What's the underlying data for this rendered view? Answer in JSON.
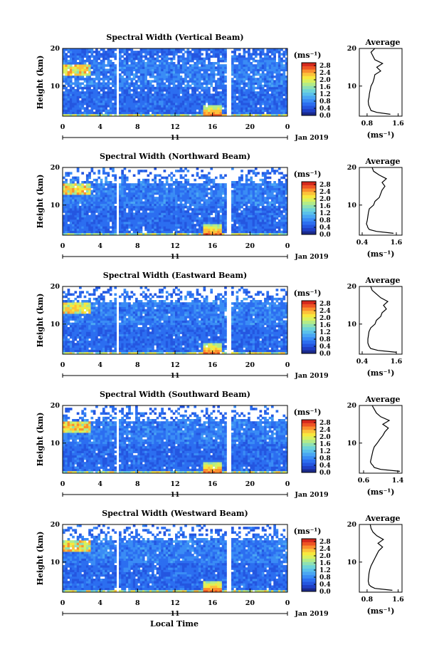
{
  "page": {
    "xlabel": "Local Time"
  },
  "colormap": [
    "#1a2a8c",
    "#1f3fc4",
    "#2456e0",
    "#2c6ef0",
    "#3a8cf5",
    "#4aa6f3",
    "#5ac0ea",
    "#6dd3d8",
    "#8ee0b4",
    "#b3eb88",
    "#d9f05e",
    "#f7e83e",
    "#fcc23a",
    "#fa8f2e",
    "#ee5424",
    "#d6281c"
  ],
  "colorbar": {
    "unit": "(ms⁻¹)",
    "ticks": [
      "2.8",
      "2.4",
      "2.0",
      "1.6",
      "1.2",
      "0.8",
      "0.4",
      "0.0"
    ]
  },
  "chart_data": [
    {
      "type": "heatmap",
      "title": "Spectral Width (Vertical Beam)",
      "ylabel": "Height (km)",
      "y_ticks": [
        "20",
        "10"
      ],
      "x_ticks": [
        "0",
        "4",
        "8",
        "12",
        "16",
        "20",
        "0"
      ],
      "date_ticks": [
        "11"
      ],
      "date_label": "Jan 2019",
      "xlim": [
        0,
        24
      ],
      "ylim": [
        2,
        20
      ],
      "zlim": [
        0.0,
        3.0
      ],
      "gaps_hours": [
        5.9,
        17.7
      ],
      "average_profile": {
        "type": "line",
        "title": "Average",
        "xlabel": "(ms⁻¹)",
        "x_ticks": [
          "0.8",
          "1.6"
        ],
        "xlim": [
          0.6,
          1.7
        ],
        "y_ticks": [
          "20",
          "10"
        ],
        "height_km": [
          2.5,
          3,
          3.5,
          4,
          4.5,
          5,
          6,
          7,
          8,
          9,
          10,
          11,
          12,
          13,
          14,
          15,
          16,
          17,
          18,
          19,
          20
        ],
        "values": [
          1.4,
          1.05,
          0.9,
          0.88,
          0.86,
          0.84,
          0.83,
          0.85,
          0.86,
          0.88,
          0.9,
          0.95,
          0.98,
          1.0,
          1.15,
          1.05,
          1.2,
          1.0,
          0.95,
          0.9,
          1.0
        ]
      }
    },
    {
      "type": "heatmap",
      "title": "Spectral Width (Northward Beam)",
      "ylabel": "Height (km)",
      "y_ticks": [
        "20",
        "10"
      ],
      "x_ticks": [
        "0",
        "4",
        "8",
        "12",
        "16",
        "20",
        "0"
      ],
      "date_ticks": [
        "11"
      ],
      "date_label": "Jan 2019",
      "xlim": [
        0,
        24
      ],
      "ylim": [
        2,
        20
      ],
      "zlim": [
        0.0,
        3.0
      ],
      "gaps_hours": [
        5.9,
        17.7
      ],
      "average_profile": {
        "type": "line",
        "title": "Average",
        "xlabel": "(ms⁻¹)",
        "x_ticks": [
          "0.4",
          "1.6"
        ],
        "xlim": [
          0.3,
          1.8
        ],
        "y_ticks": [
          "20",
          "10"
        ],
        "height_km": [
          2.5,
          3,
          3.5,
          4,
          4.5,
          5,
          6,
          7,
          8,
          9,
          10,
          11,
          12,
          13,
          14,
          15,
          16,
          17,
          18,
          19,
          20
        ],
        "values": [
          1.5,
          0.9,
          0.65,
          0.6,
          0.58,
          0.55,
          0.58,
          0.6,
          0.62,
          0.65,
          0.8,
          0.85,
          1.0,
          1.05,
          1.1,
          1.2,
          1.1,
          1.25,
          1.0,
          0.8,
          0.75
        ]
      }
    },
    {
      "type": "heatmap",
      "title": "Spectral Width (Eastward Beam)",
      "ylabel": "Height (km)",
      "y_ticks": [
        "20",
        "10"
      ],
      "x_ticks": [
        "0",
        "4",
        "8",
        "12",
        "16",
        "20",
        "0"
      ],
      "date_ticks": [
        "11"
      ],
      "date_label": "Jan 2019",
      "xlim": [
        0,
        24
      ],
      "ylim": [
        2,
        20
      ],
      "zlim": [
        0.0,
        3.0
      ],
      "gaps_hours": [
        5.9,
        17.7
      ],
      "average_profile": {
        "type": "line",
        "title": "Average",
        "xlabel": "(ms⁻¹)",
        "x_ticks": [
          "0.4",
          "1.6"
        ],
        "xlim": [
          0.3,
          1.8
        ],
        "y_ticks": [
          "20",
          "10"
        ],
        "height_km": [
          2.5,
          3,
          3.5,
          4,
          4.5,
          5,
          6,
          7,
          8,
          9,
          10,
          11,
          12,
          13,
          14,
          15,
          16,
          17,
          18,
          19,
          20
        ],
        "values": [
          1.6,
          0.95,
          0.7,
          0.65,
          0.62,
          0.6,
          0.6,
          0.62,
          0.64,
          0.7,
          0.85,
          0.9,
          1.05,
          1.1,
          1.25,
          1.15,
          1.3,
          1.05,
          0.9,
          0.75,
          0.7
        ]
      }
    },
    {
      "type": "heatmap",
      "title": "Spectral Width (Southward Beam)",
      "ylabel": "Height (km)",
      "y_ticks": [
        "20",
        "10"
      ],
      "x_ticks": [
        "0",
        "4",
        "8",
        "12",
        "16",
        "20",
        "0"
      ],
      "date_ticks": [
        "11"
      ],
      "date_label": "Jan 2019",
      "xlim": [
        0,
        24
      ],
      "ylim": [
        2,
        20
      ],
      "zlim": [
        0.0,
        3.0
      ],
      "gaps_hours": [
        5.9,
        17.7
      ],
      "average_profile": {
        "type": "line",
        "title": "Average",
        "xlabel": "(ms⁻¹)",
        "x_ticks": [
          "0.6",
          "1.4"
        ],
        "xlim": [
          0.5,
          1.5
        ],
        "y_ticks": [
          "20",
          "10"
        ],
        "height_km": [
          2.5,
          3,
          3.5,
          4,
          4.5,
          5,
          6,
          7,
          8,
          9,
          10,
          11,
          12,
          13,
          14,
          15,
          16,
          17,
          18,
          19,
          20
        ],
        "values": [
          1.45,
          1.0,
          0.85,
          0.82,
          0.78,
          0.76,
          0.78,
          0.8,
          0.82,
          0.85,
          0.92,
          0.98,
          1.05,
          1.1,
          1.18,
          1.05,
          1.2,
          1.0,
          0.9,
          0.85,
          0.8
        ]
      }
    },
    {
      "type": "heatmap",
      "title": "Spectral Width (Westward Beam)",
      "ylabel": "Height (km)",
      "y_ticks": [
        "20",
        "10"
      ],
      "x_ticks": [
        "0",
        "4",
        "8",
        "12",
        "16",
        "20",
        "0"
      ],
      "date_ticks": [
        "11"
      ],
      "date_label": "Jan 2019",
      "xlim": [
        0,
        24
      ],
      "ylim": [
        2,
        20
      ],
      "zlim": [
        0.0,
        3.0
      ],
      "gaps_hours": [
        5.9,
        17.7
      ],
      "average_profile": {
        "type": "line",
        "title": "Average",
        "xlabel": "(ms⁻¹)",
        "x_ticks": [
          "0.8",
          "1.6"
        ],
        "xlim": [
          0.6,
          1.7
        ],
        "y_ticks": [
          "20",
          "10"
        ],
        "height_km": [
          2.5,
          3,
          3.5,
          4,
          4.5,
          5,
          6,
          7,
          8,
          9,
          10,
          11,
          12,
          13,
          14,
          15,
          16,
          17,
          18,
          19,
          20
        ],
        "values": [
          1.45,
          1.0,
          0.9,
          0.85,
          0.84,
          0.83,
          0.84,
          0.85,
          0.87,
          0.9,
          0.95,
          1.0,
          1.05,
          1.1,
          1.2,
          1.08,
          1.22,
          1.05,
          0.95,
          0.9,
          0.88
        ]
      }
    }
  ]
}
